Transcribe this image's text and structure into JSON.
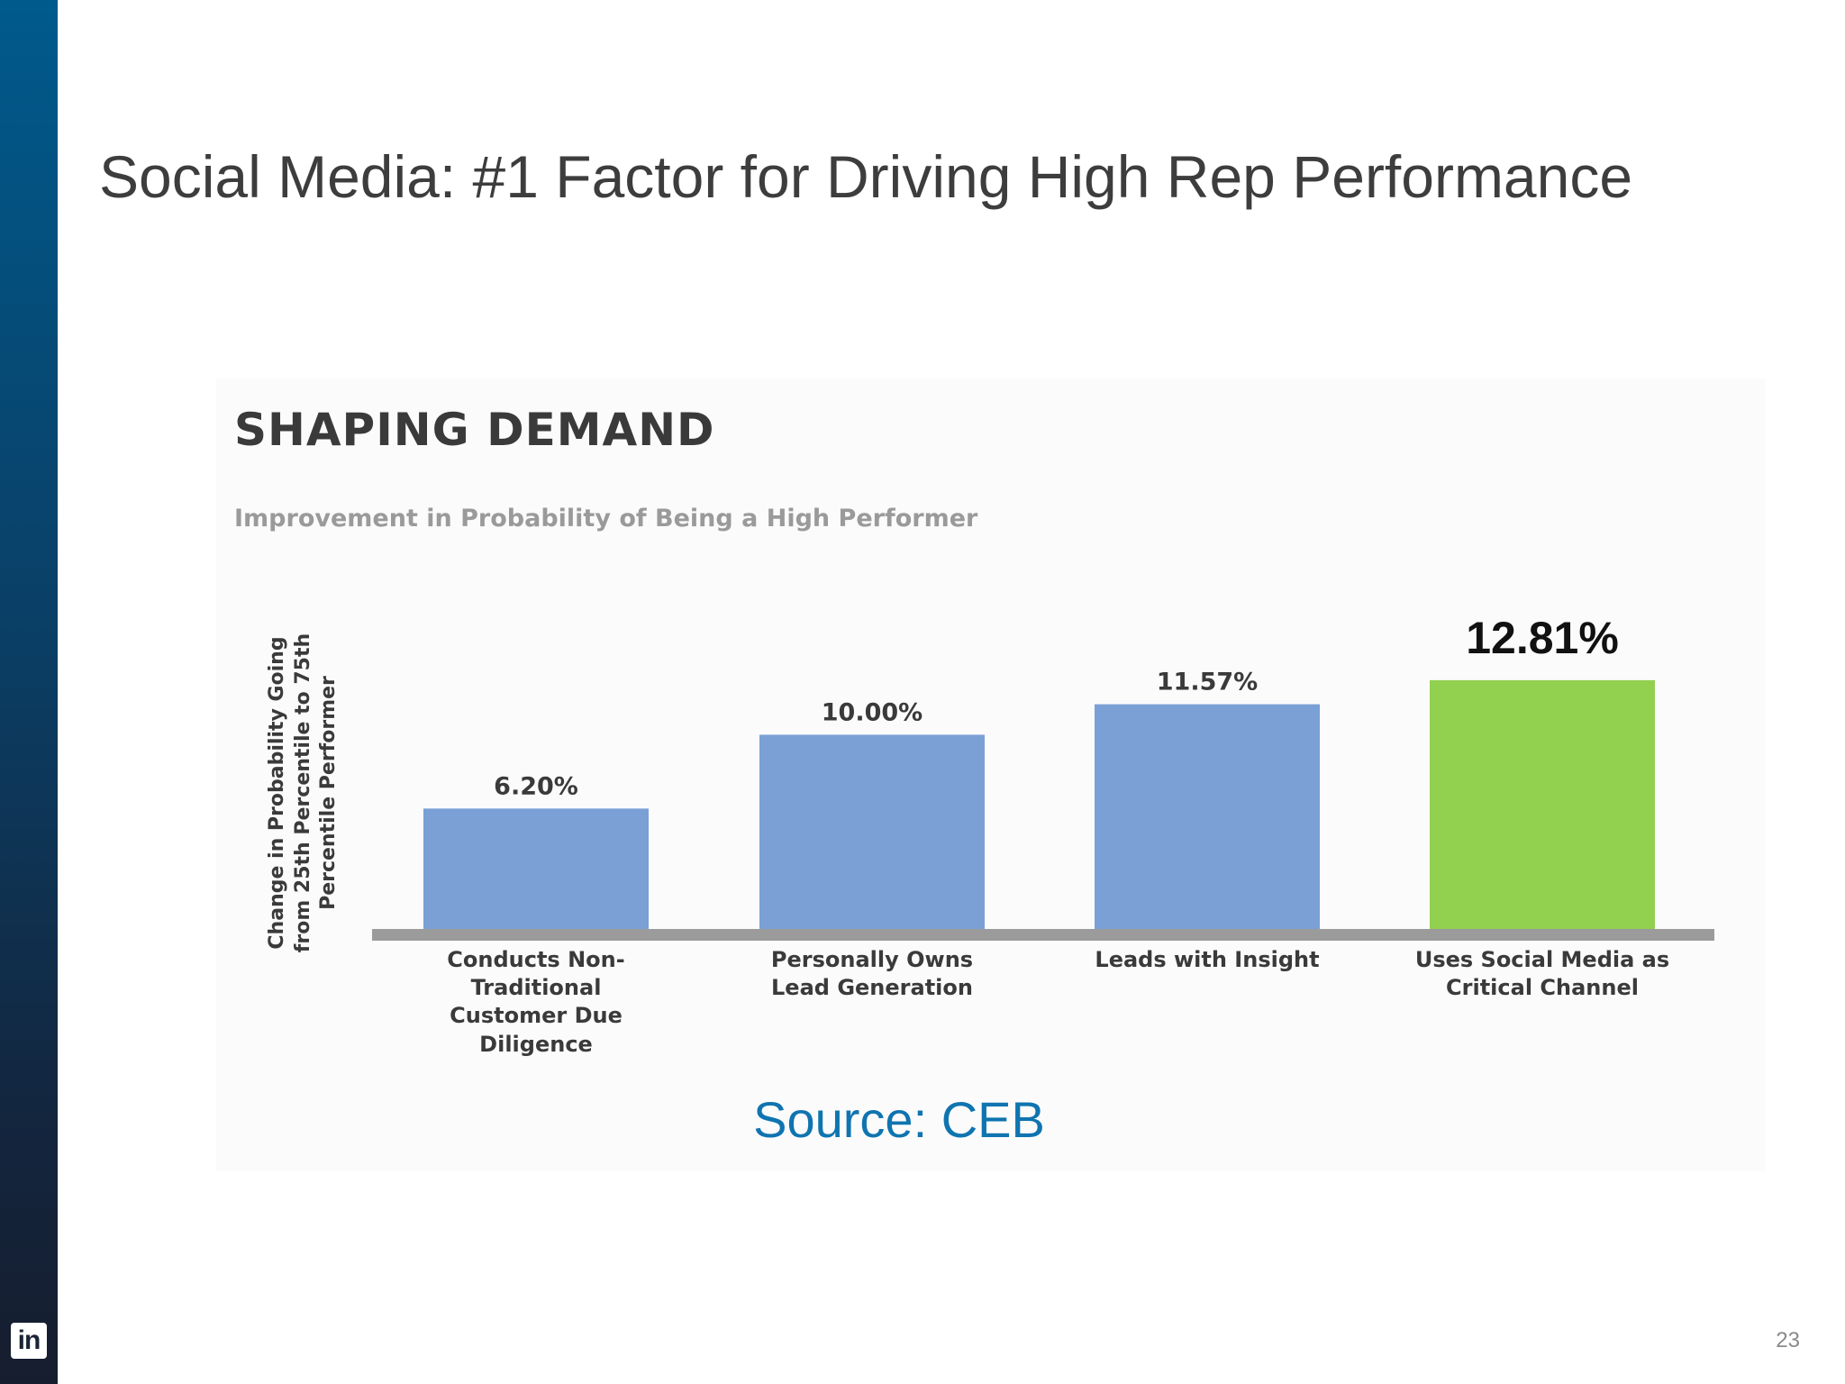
{
  "slide": {
    "title": "Social Media: #1 Factor for Driving High Rep Performance",
    "source": "Source: CEB",
    "page_number": "23",
    "logo_text": "in"
  },
  "chart_data": {
    "type": "bar",
    "title": "SHAPING DEMAND",
    "subtitle": "Improvement in Probability of Being a High Performer",
    "ylabel": "Change in Probability Going\nfrom 25th Percentile to 75th\nPercentile Performer",
    "xlabel": "",
    "categories": [
      "Conducts Non-\nTraditional\nCustomer Due\nDiligence",
      "Personally Owns\nLead Generation",
      "Leads with Insight",
      "Uses Social Media as\nCritical Channel"
    ],
    "values": [
      6.2,
      10.0,
      11.57,
      12.81
    ],
    "data_labels": [
      "6.20%",
      "10.00%",
      "11.57%",
      "12.81%"
    ],
    "ylim": [
      0,
      13.5
    ],
    "grid": false,
    "legend": "none",
    "colors": {
      "default_bar": "#7aa0d6",
      "highlight_bar": "#92d050",
      "baseline": "#9b9b9b",
      "label": "#3a3a3a",
      "highlight_label": "#111111"
    },
    "highlight_index": 3
  }
}
